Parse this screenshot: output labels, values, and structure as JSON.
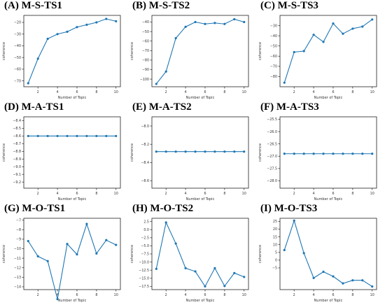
{
  "chart_data": [
    {
      "id": "A",
      "title": "(A) M-S-TS1",
      "type": "line",
      "x": [
        1,
        2,
        3,
        4,
        5,
        6,
        7,
        8,
        9,
        10
      ],
      "y": [
        -72,
        -51,
        -34,
        -30,
        -28,
        -24,
        -22,
        -20,
        -17,
        -19
      ],
      "xlabel": "Number of Topic",
      "ylabel": "coherence",
      "xticks": [
        2,
        4,
        6,
        8,
        10
      ],
      "yticks": [
        -70,
        -60,
        -50,
        -40,
        -30,
        -20
      ],
      "ylim": [
        -75,
        -14
      ],
      "color": "#1f77b4",
      "grid": false
    },
    {
      "id": "B",
      "title": "(B) M-S-TS2",
      "type": "line",
      "x": [
        1,
        2,
        3,
        4,
        5,
        6,
        7,
        8,
        9,
        10
      ],
      "y": [
        -105,
        -92,
        -57,
        -45,
        -40,
        -42,
        -41,
        -42,
        -37,
        -40
      ],
      "xlabel": "Number of Topic",
      "ylabel": "coherence",
      "xticks": [
        2,
        4,
        6,
        8,
        10
      ],
      "yticks": [
        -100,
        -90,
        -80,
        -70,
        -60,
        -50,
        -40
      ],
      "ylim": [
        -108,
        -33
      ],
      "color": "#1f77b4",
      "grid": false
    },
    {
      "id": "C",
      "title": "(C) M-S-TS3",
      "type": "line",
      "x": [
        1,
        2,
        3,
        4,
        5,
        6,
        7,
        8,
        9,
        10
      ],
      "y": [
        -86,
        -56,
        -55,
        -39,
        -46,
        -28,
        -38,
        -33,
        -31,
        -24
      ],
      "xlabel": "Number of Topic",
      "ylabel": "coherence",
      "xticks": [
        2,
        4,
        6,
        8,
        10
      ],
      "yticks": [
        -80,
        -70,
        -60,
        -50,
        -40,
        -30
      ],
      "ylim": [
        -90,
        -20
      ],
      "color": "#1f77b4",
      "grid": false
    },
    {
      "id": "D",
      "title": "(D) M-A-TS1",
      "type": "line",
      "x": [
        1,
        2,
        3,
        4,
        5,
        6,
        7,
        8,
        9,
        10
      ],
      "y": [
        -8.6,
        -8.6,
        -8.6,
        -8.6,
        -8.6,
        -8.6,
        -8.6,
        -8.6,
        -8.6,
        -8.6
      ],
      "xlabel": "Number of Topic",
      "ylabel": "coherence",
      "xticks": [
        2,
        4,
        6,
        8,
        10
      ],
      "yticks": [
        -8.4,
        -8.5,
        -8.6,
        -8.7,
        -8.8,
        -8.9,
        -9.0,
        -9.1,
        -9.2
      ],
      "ylim": [
        -9.28,
        -8.35
      ],
      "color": "#1f77b4",
      "grid": false
    },
    {
      "id": "E",
      "title": "(E) M-A-TS2",
      "type": "line",
      "x": [
        1,
        2,
        3,
        4,
        5,
        6,
        7,
        8,
        9,
        10
      ],
      "y": [
        -8.28,
        -8.28,
        -8.28,
        -8.28,
        -8.28,
        -8.28,
        -8.28,
        -8.28,
        -8.28,
        -8.28
      ],
      "xlabel": "Number of Topic",
      "ylabel": "coherence",
      "xticks": [
        2,
        4,
        6,
        8,
        10
      ],
      "yticks": [
        -8.0,
        -8.2,
        -8.4,
        -8.6
      ],
      "ylim": [
        -8.68,
        -7.9
      ],
      "color": "#1f77b4",
      "grid": false
    },
    {
      "id": "F",
      "title": "(F) M-A-TS3",
      "type": "line",
      "x": [
        1,
        2,
        3,
        4,
        5,
        6,
        7,
        8,
        9,
        10
      ],
      "y": [
        -26.9,
        -26.9,
        -26.9,
        -26.9,
        -26.9,
        -26.9,
        -26.9,
        -26.9,
        -26.9,
        -26.9
      ],
      "xlabel": "Number of Topic",
      "ylabel": "coherence",
      "xticks": [
        2,
        4,
        6,
        8,
        10
      ],
      "yticks": [
        -25.5,
        -26.0,
        -26.5,
        -27.0,
        -27.5,
        -28.0
      ],
      "ylim": [
        -28.3,
        -25.4
      ],
      "color": "#1f77b4",
      "grid": false
    },
    {
      "id": "G",
      "title": "(G) M-O-TS1",
      "type": "line",
      "x": [
        1,
        2,
        3,
        4,
        5,
        6,
        7,
        8,
        9,
        10
      ],
      "y": [
        -9.2,
        -10.8,
        -11.3,
        -15.3,
        -9.5,
        -10.6,
        -7.4,
        -10.5,
        -9.1,
        -9.6
      ],
      "xlabel": "Number of Topic",
      "ylabel": "coherence",
      "xticks": [
        2,
        4,
        6,
        8,
        10
      ],
      "yticks": [
        -7,
        -8,
        -9,
        -10,
        -11,
        -12,
        -13,
        -14
      ],
      "ylim": [
        -14.3,
        -6.8
      ],
      "color": "#1f77b4",
      "grid": false
    },
    {
      "id": "H",
      "title": "(H) M-O-TS2",
      "type": "line",
      "x": [
        1,
        2,
        3,
        4,
        5,
        6,
        7,
        8,
        9,
        10
      ],
      "y": [
        -12.1,
        2.2,
        -4.3,
        -11.9,
        -12.9,
        -17.5,
        -11.9,
        -17.4,
        -13.4,
        -14.6
      ],
      "xlabel": "Number of Topic",
      "ylabel": "coherence",
      "xticks": [
        2,
        4,
        6,
        8,
        10
      ],
      "yticks": [
        2.5,
        0.0,
        -2.5,
        -5.0,
        -7.5,
        -10.0,
        -12.5,
        -15.0,
        -17.5
      ],
      "ylim": [
        -18.5,
        3.5
      ],
      "color": "#1f77b4",
      "grid": false
    },
    {
      "id": "I",
      "title": "(I) M-O-TS3",
      "type": "line",
      "x": [
        1,
        2,
        3,
        4,
        5,
        6,
        7,
        8,
        9,
        10
      ],
      "y": [
        6.5,
        25.5,
        4.5,
        -11.5,
        -7.5,
        -10.5,
        -15,
        -13,
        -13,
        -17
      ],
      "xlabel": "Number of Topic",
      "ylabel": "coherence",
      "xticks": [
        2,
        4,
        6,
        8,
        10
      ],
      "yticks": [
        25,
        20,
        15,
        10,
        5,
        0,
        -5
      ],
      "ylim": [
        -19,
        27
      ],
      "color": "#1f77b4",
      "grid": false
    }
  ]
}
